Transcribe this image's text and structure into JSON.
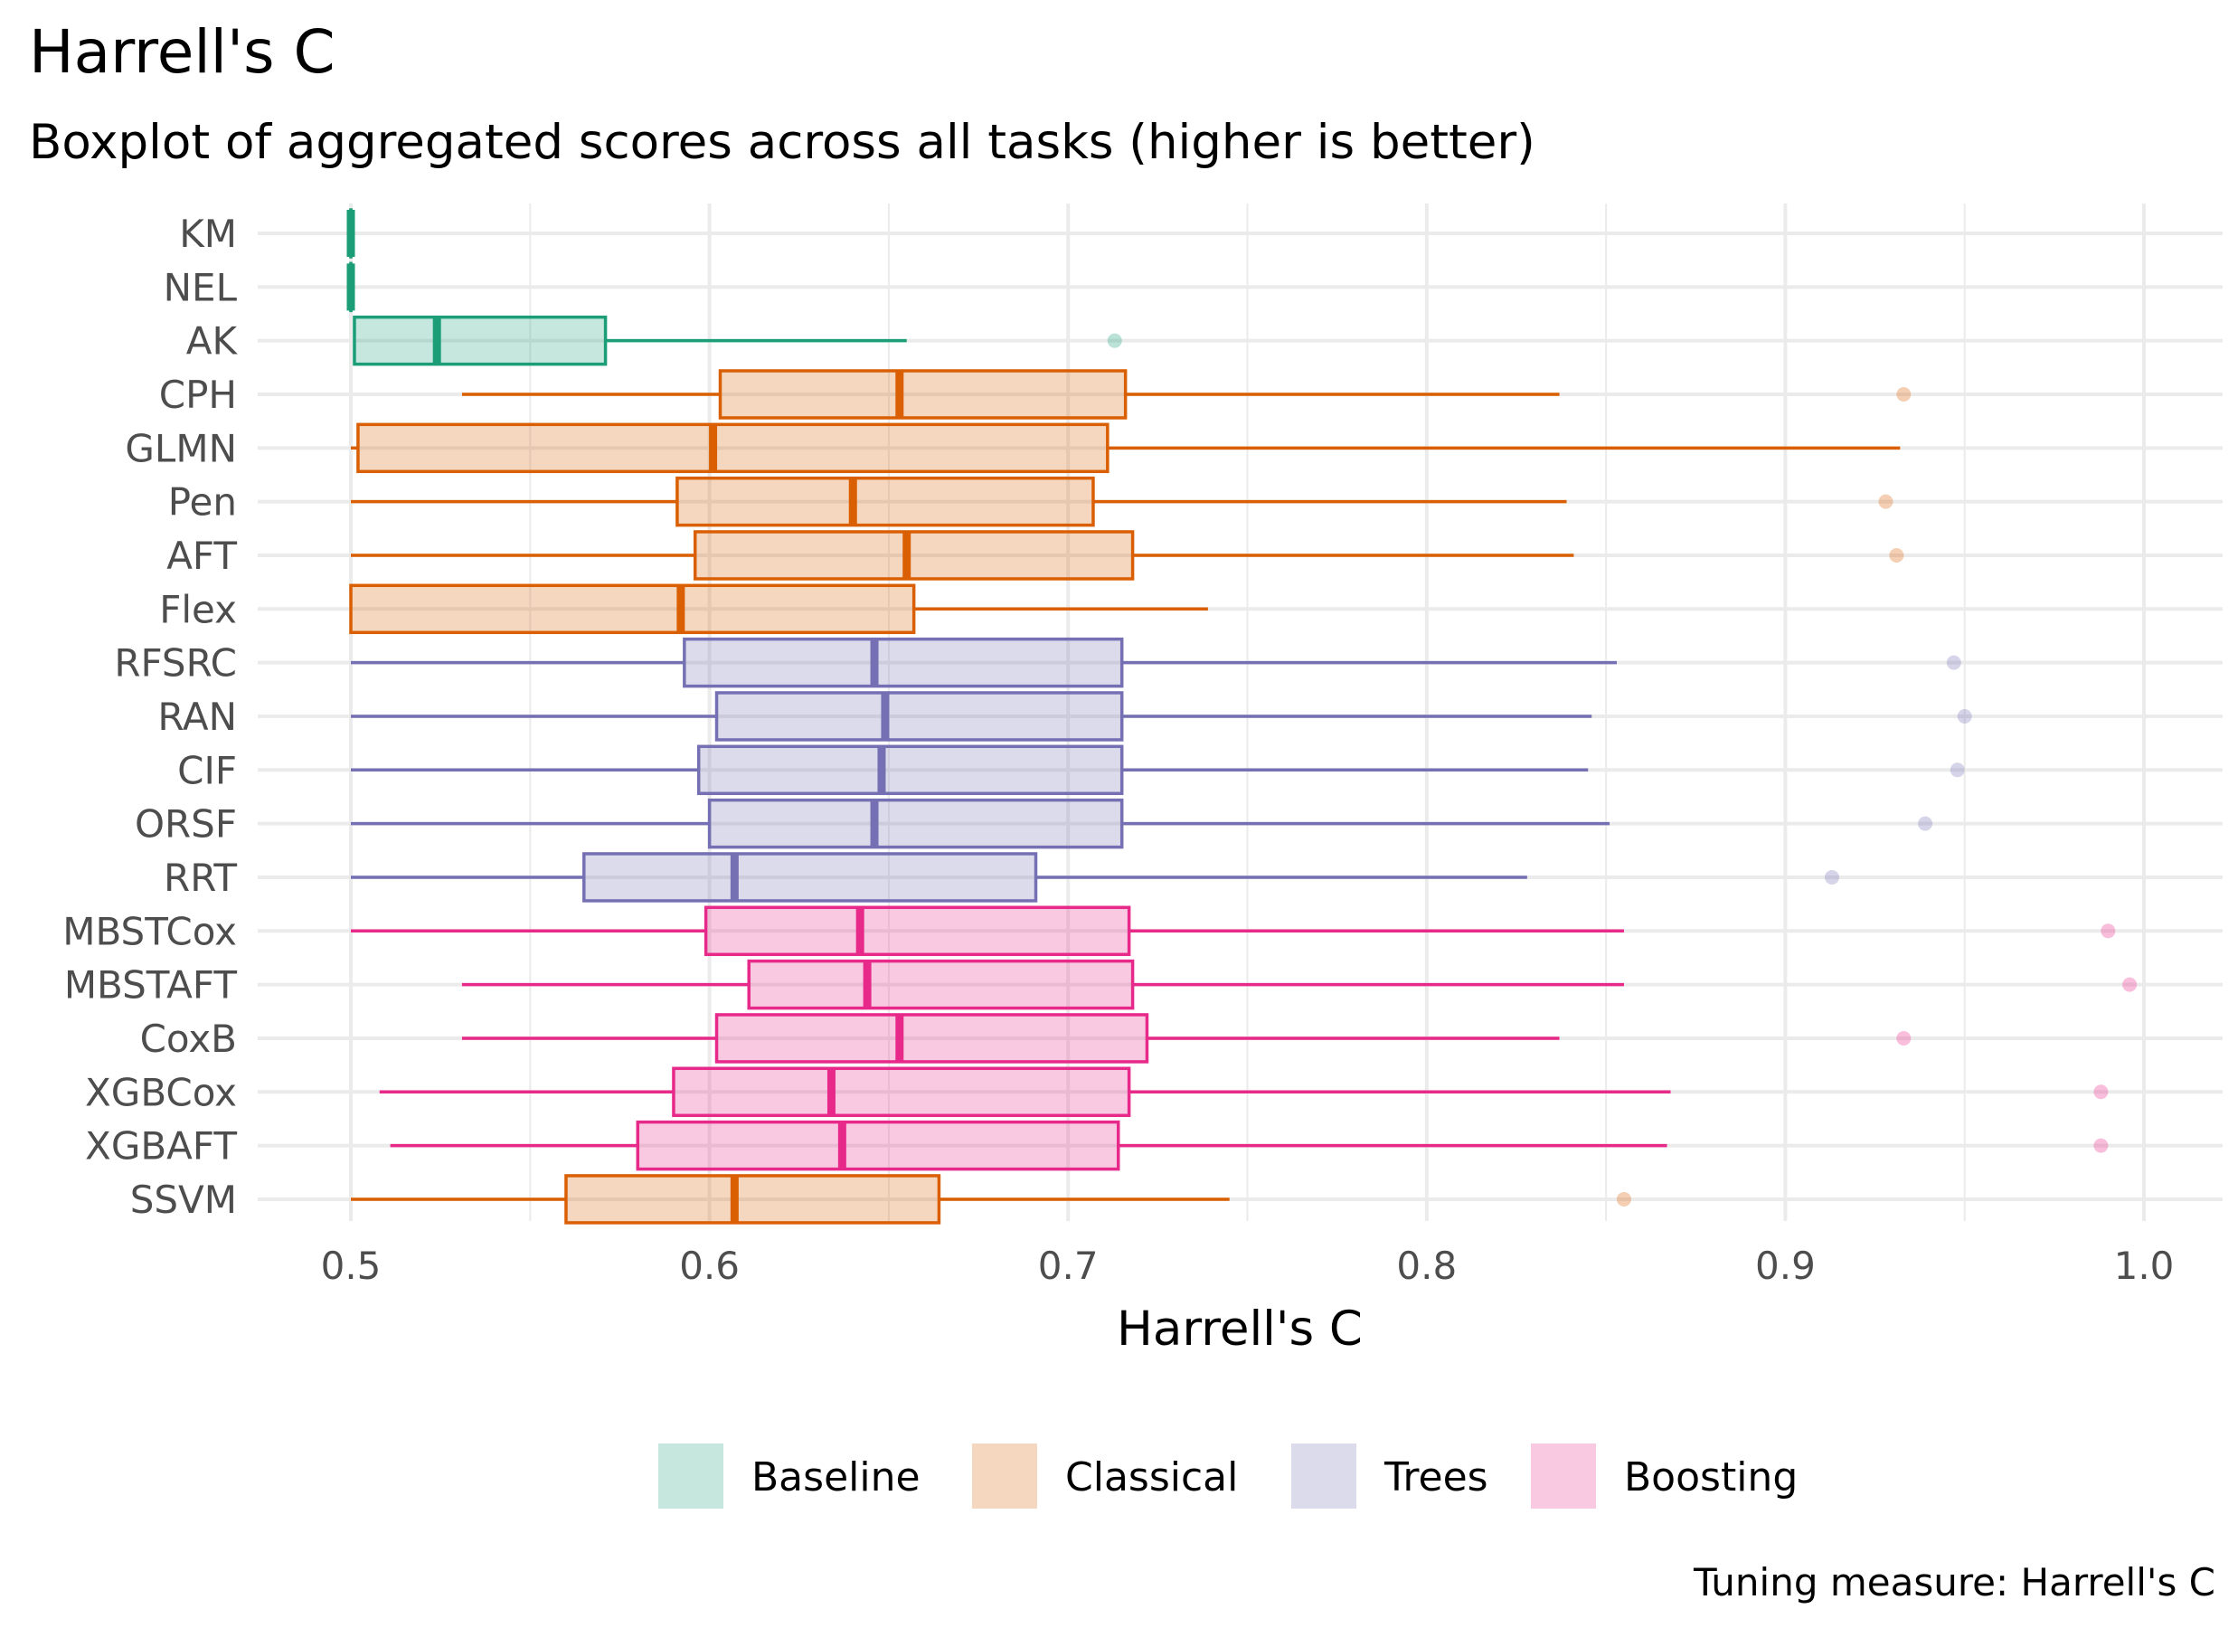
{
  "chart_data": {
    "type": "boxplot",
    "orientation": "horizontal",
    "title": "Harrell's C",
    "subtitle": "Boxplot of aggregated scores across all tasks (higher is better)",
    "xlabel": "Harrell's C",
    "caption": "Tuning measure: Harrell's C",
    "xlim": [
      0.475,
      1.02
    ],
    "x_ticks": [
      0.5,
      0.6,
      0.7,
      0.8,
      0.9,
      1.0
    ],
    "x_tick_labels": [
      "0.5",
      "0.6",
      "0.7",
      "0.8",
      "0.9",
      "1.0"
    ],
    "grid": true,
    "legend": {
      "position": "bottom",
      "entries": [
        {
          "name": "Baseline",
          "color": "#1B9E77"
        },
        {
          "name": "Classical",
          "color": "#D95F02"
        },
        {
          "name": "Trees",
          "color": "#7570B3"
        },
        {
          "name": "Boosting",
          "color": "#E7298A"
        }
      ]
    },
    "boxes": [
      {
        "label": "KM",
        "group": "Baseline",
        "min": 0.5,
        "q1": 0.5,
        "median": 0.5,
        "q3": 0.5,
        "max": 0.5,
        "outliers": []
      },
      {
        "label": "NEL",
        "group": "Baseline",
        "min": 0.5,
        "q1": 0.5,
        "median": 0.5,
        "q3": 0.5,
        "max": 0.5,
        "outliers": []
      },
      {
        "label": "AK",
        "group": "Baseline",
        "min": 0.501,
        "q1": 0.501,
        "median": 0.524,
        "q3": 0.571,
        "max": 0.655,
        "outliers": [
          0.713
        ]
      },
      {
        "label": "CPH",
        "group": "Classical",
        "min": 0.531,
        "q1": 0.603,
        "median": 0.653,
        "q3": 0.716,
        "max": 0.837,
        "outliers": [
          0.933
        ]
      },
      {
        "label": "GLMN",
        "group": "Classical",
        "min": 0.5,
        "q1": 0.502,
        "median": 0.601,
        "q3": 0.711,
        "max": 0.932,
        "outliers": []
      },
      {
        "label": "Pen",
        "group": "Classical",
        "min": 0.5,
        "q1": 0.591,
        "median": 0.64,
        "q3": 0.707,
        "max": 0.839,
        "outliers": [
          0.928
        ]
      },
      {
        "label": "AFT",
        "group": "Classical",
        "min": 0.5,
        "q1": 0.596,
        "median": 0.655,
        "q3": 0.718,
        "max": 0.841,
        "outliers": [
          0.931
        ]
      },
      {
        "label": "Flex",
        "group": "Classical",
        "min": 0.5,
        "q1": 0.5,
        "median": 0.592,
        "q3": 0.657,
        "max": 0.739,
        "outliers": []
      },
      {
        "label": "RFSRC",
        "group": "Trees",
        "min": 0.5,
        "q1": 0.593,
        "median": 0.646,
        "q3": 0.715,
        "max": 0.853,
        "outliers": [
          0.947
        ]
      },
      {
        "label": "RAN",
        "group": "Trees",
        "min": 0.5,
        "q1": 0.602,
        "median": 0.649,
        "q3": 0.715,
        "max": 0.846,
        "outliers": [
          0.95
        ]
      },
      {
        "label": "CIF",
        "group": "Trees",
        "min": 0.5,
        "q1": 0.597,
        "median": 0.648,
        "q3": 0.715,
        "max": 0.845,
        "outliers": [
          0.948
        ]
      },
      {
        "label": "ORSF",
        "group": "Trees",
        "min": 0.5,
        "q1": 0.6,
        "median": 0.646,
        "q3": 0.715,
        "max": 0.851,
        "outliers": [
          0.939
        ]
      },
      {
        "label": "RRT",
        "group": "Trees",
        "min": 0.5,
        "q1": 0.565,
        "median": 0.607,
        "q3": 0.691,
        "max": 0.828,
        "outliers": [
          0.913
        ]
      },
      {
        "label": "MBSTCox",
        "group": "Boosting",
        "min": 0.5,
        "q1": 0.599,
        "median": 0.642,
        "q3": 0.717,
        "max": 0.855,
        "outliers": [
          0.99
        ]
      },
      {
        "label": "MBSTAFT",
        "group": "Boosting",
        "min": 0.531,
        "q1": 0.611,
        "median": 0.644,
        "q3": 0.718,
        "max": 0.855,
        "outliers": [
          0.996
        ]
      },
      {
        "label": "CoxB",
        "group": "Boosting",
        "min": 0.531,
        "q1": 0.602,
        "median": 0.653,
        "q3": 0.722,
        "max": 0.837,
        "outliers": [
          0.933
        ]
      },
      {
        "label": "XGBCox",
        "group": "Boosting",
        "min": 0.508,
        "q1": 0.59,
        "median": 0.634,
        "q3": 0.717,
        "max": 0.868,
        "outliers": [
          0.988
        ]
      },
      {
        "label": "XGBAFT",
        "group": "Boosting",
        "min": 0.511,
        "q1": 0.58,
        "median": 0.637,
        "q3": 0.714,
        "max": 0.867,
        "outliers": [
          0.988
        ]
      },
      {
        "label": "SSVM",
        "group": "Classical",
        "min": 0.5,
        "q1": 0.56,
        "median": 0.607,
        "q3": 0.664,
        "max": 0.745,
        "outliers": [
          0.855
        ]
      }
    ]
  }
}
